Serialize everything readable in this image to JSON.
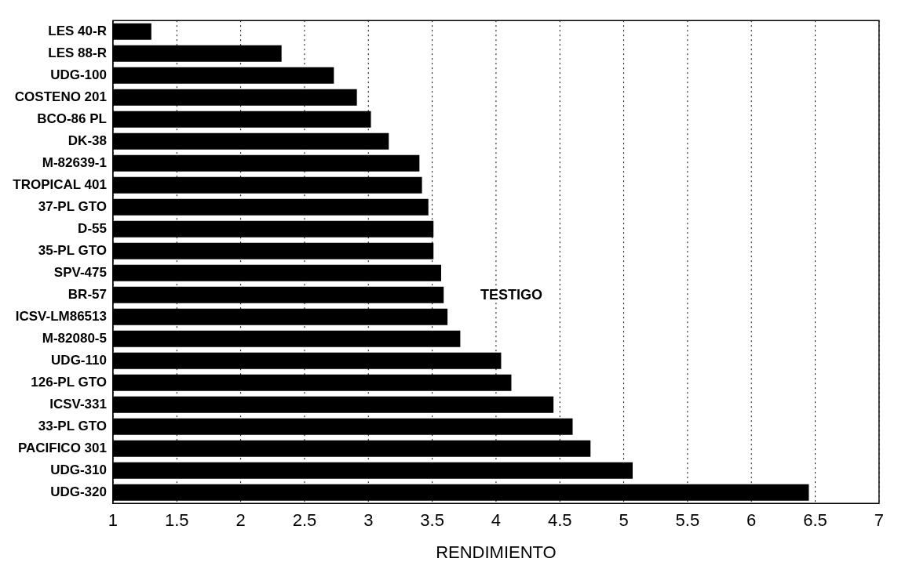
{
  "chart_data": {
    "type": "bar",
    "orientation": "horizontal",
    "xlabel": "RENDIMIENTO",
    "categories": [
      "LES 40-R",
      "LES 88-R",
      "UDG-100",
      "COSTENO 201",
      "BCO-86 PL",
      "DK-38",
      "M-82639-1",
      "TROPICAL 401",
      "37-PL GTO",
      "D-55",
      "35-PL GTO",
      "SPV-475",
      "BR-57",
      "ICSV-LM86513",
      "M-82080-5",
      "UDG-110",
      "126-PL GTO",
      "ICSV-331",
      "33-PL GTO",
      "PACIFICO 301",
      "UDG-310",
      "UDG-320"
    ],
    "values": [
      1.3,
      2.32,
      2.73,
      2.91,
      3.02,
      3.16,
      3.4,
      3.42,
      3.47,
      3.51,
      3.51,
      3.57,
      3.59,
      3.62,
      3.72,
      4.04,
      4.12,
      4.45,
      4.6,
      4.74,
      5.07,
      6.45
    ],
    "color": "#000000",
    "xlim": [
      1,
      7
    ],
    "xticks": [
      1,
      1.5,
      2,
      2.5,
      3,
      3.5,
      4,
      4.5,
      5,
      5.5,
      6,
      6.5,
      7
    ],
    "grid": "x",
    "annotations": [
      "TESTIGO"
    ]
  }
}
